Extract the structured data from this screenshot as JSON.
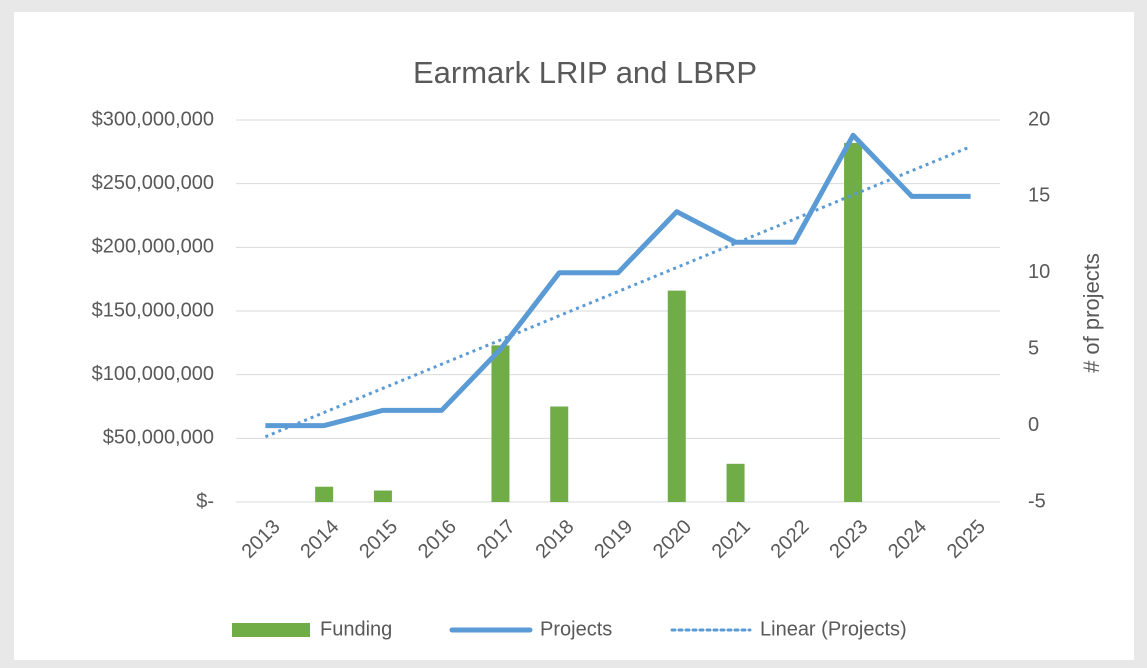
{
  "chart_data": {
    "type": "combo",
    "title": "Earmark LRIP and LBRP",
    "categories": [
      "2013",
      "2014",
      "2015",
      "2016",
      "2017",
      "2018",
      "2019",
      "2020",
      "2021",
      "2022",
      "2023",
      "2024",
      "2025"
    ],
    "series": [
      {
        "name": "Funding",
        "type": "bar",
        "color": "#70ad47",
        "axis": "y",
        "values": [
          0,
          12000000,
          9000000,
          0,
          123000000,
          75000000,
          0,
          166000000,
          30000000,
          0,
          282000000,
          0,
          0
        ]
      },
      {
        "name": "Projects",
        "type": "line",
        "color": "#5b9bd5",
        "axis": "y2",
        "values": [
          0,
          0,
          1,
          1,
          5,
          10,
          10,
          14,
          12,
          12,
          19,
          15,
          15
        ]
      },
      {
        "name": "Linear (Projects)",
        "type": "trend",
        "color": "#5b9bd5",
        "axis": "y2",
        "values": [
          -0.73,
          0.86,
          2.44,
          4.02,
          5.6,
          7.19,
          8.77,
          10.35,
          11.93,
          13.51,
          15.1,
          16.68,
          18.26
        ]
      }
    ],
    "ylim": [
      0,
      300000000
    ],
    "yticks": [
      {
        "value": 0,
        "label": "$-"
      },
      {
        "value": 50000000,
        "label": "$50,000,000"
      },
      {
        "value": 100000000,
        "label": "$100,000,000"
      },
      {
        "value": 150000000,
        "label": "$150,000,000"
      },
      {
        "value": 200000000,
        "label": "$200,000,000"
      },
      {
        "value": 250000000,
        "label": "$250,000,000"
      },
      {
        "value": 300000000,
        "label": "$300,000,000"
      }
    ],
    "y2lim": [
      -5,
      20
    ],
    "y2ticks": [
      -5,
      0,
      5,
      10,
      15,
      20
    ],
    "y2label": "# of projects",
    "grid": true,
    "legend": "bottom"
  }
}
